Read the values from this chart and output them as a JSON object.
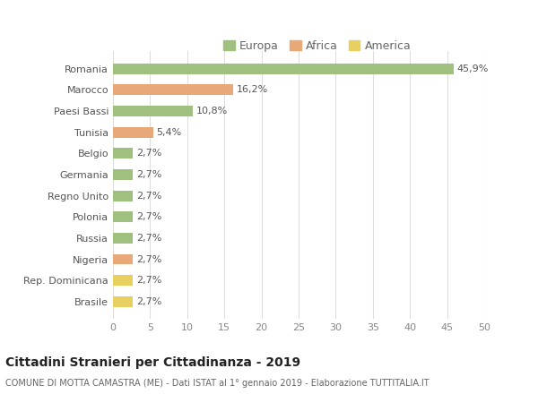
{
  "categories": [
    "Brasile",
    "Rep. Dominicana",
    "Nigeria",
    "Russia",
    "Polonia",
    "Regno Unito",
    "Germania",
    "Belgio",
    "Tunisia",
    "Paesi Bassi",
    "Marocco",
    "Romania"
  ],
  "values": [
    2.7,
    2.7,
    2.7,
    2.7,
    2.7,
    2.7,
    2.7,
    2.7,
    5.4,
    10.8,
    16.2,
    45.9
  ],
  "labels": [
    "2,7%",
    "2,7%",
    "2,7%",
    "2,7%",
    "2,7%",
    "2,7%",
    "2,7%",
    "2,7%",
    "5,4%",
    "10,8%",
    "16,2%",
    "45,9%"
  ],
  "colors": [
    "#e8d060",
    "#e8d060",
    "#e8a878",
    "#a0c080",
    "#a0c080",
    "#a0c080",
    "#a0c080",
    "#a0c080",
    "#e8a878",
    "#a0c080",
    "#e8a878",
    "#a0c080"
  ],
  "legend": [
    {
      "label": "Europa",
      "color": "#a0c080"
    },
    {
      "label": "Africa",
      "color": "#e8a878"
    },
    {
      "label": "America",
      "color": "#e8d060"
    }
  ],
  "xlim": [
    0,
    50
  ],
  "xticks": [
    0,
    5,
    10,
    15,
    20,
    25,
    30,
    35,
    40,
    45,
    50
  ],
  "title": "Cittadini Stranieri per Cittadinanza - 2019",
  "subtitle": "COMUNE DI MOTTA CAMASTRA (ME) - Dati ISTAT al 1° gennaio 2019 - Elaborazione TUTTITALIA.IT",
  "bg_color": "#ffffff",
  "grid_color": "#dddddd",
  "bar_height": 0.5,
  "title_fontsize": 10,
  "subtitle_fontsize": 7,
  "label_fontsize": 8,
  "tick_fontsize": 8,
  "legend_fontsize": 9
}
